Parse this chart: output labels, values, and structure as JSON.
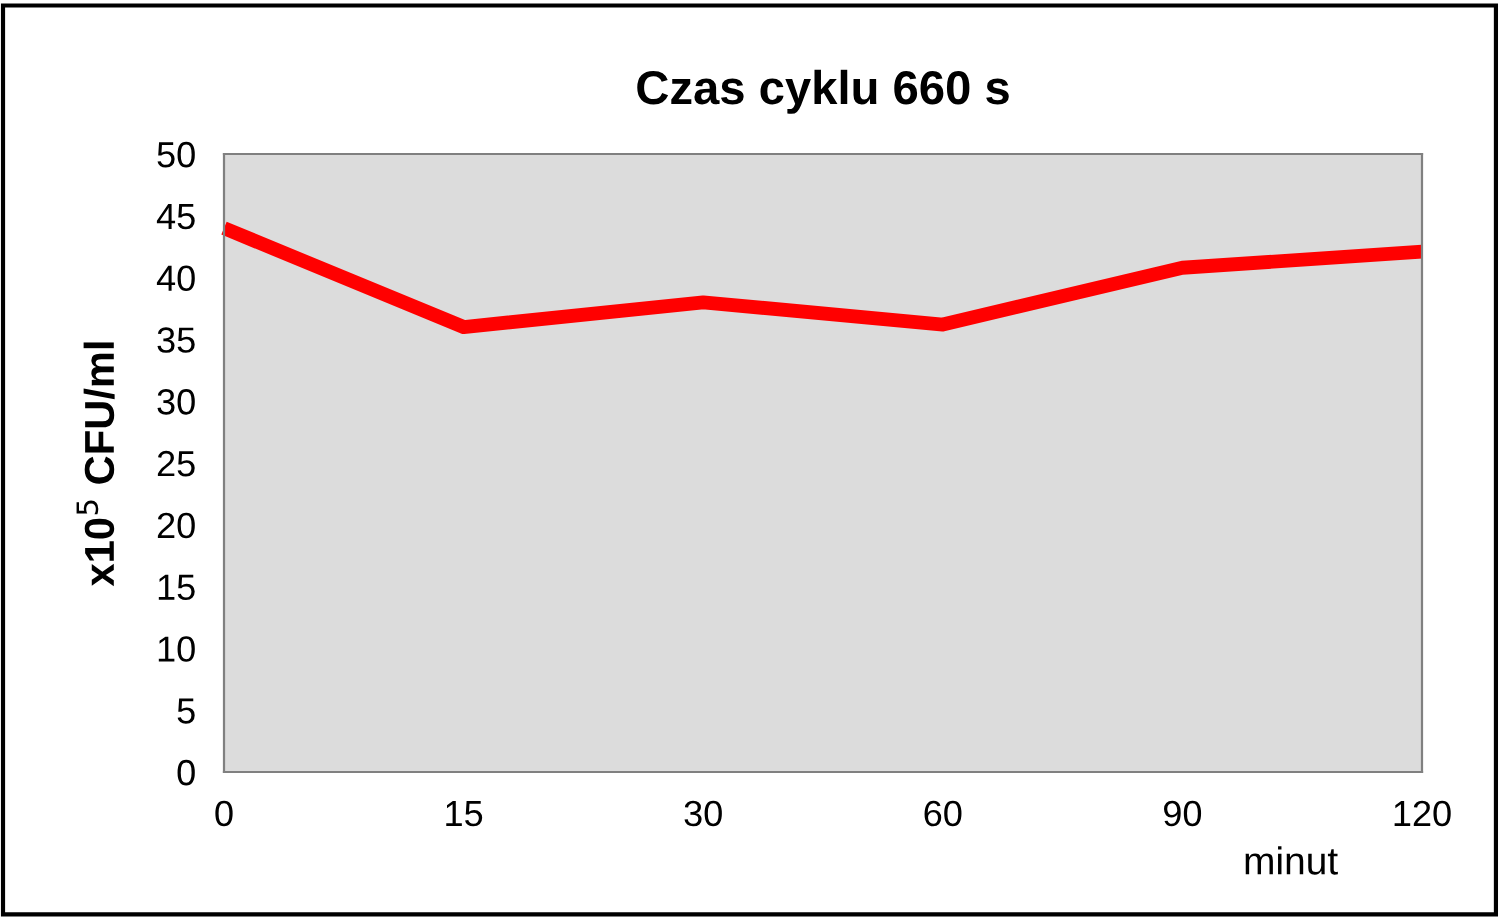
{
  "chart_data": {
    "type": "line",
    "title": "Czas cyklu 660 s",
    "xlabel": "minut",
    "ylabel": "x10$^{5}$ CFU/ml",
    "categories": [
      "0",
      "15",
      "30",
      "60",
      "90",
      "120"
    ],
    "series": [
      {
        "color": "#ff0000",
        "values": [
          44,
          36,
          38,
          36.2,
          40.8,
          42.1
        ]
      }
    ],
    "ylim": [
      0,
      50
    ],
    "yticks": [
      0,
      5,
      10,
      15,
      20,
      25,
      30,
      35,
      40,
      45,
      50
    ],
    "grid": false,
    "legend": false,
    "marker": "none",
    "line_style": "solid"
  }
}
